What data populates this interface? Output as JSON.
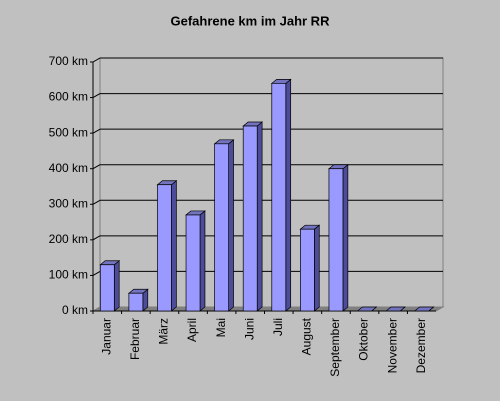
{
  "chart_data": {
    "type": "bar",
    "title": "Gefahrene km im Jahr RR",
    "categories": [
      "Januar",
      "Februar",
      "März",
      "April",
      "Mai",
      "Juni",
      "Juli",
      "August",
      "September",
      "Oktober",
      "November",
      "Dezember"
    ],
    "values": [
      130,
      50,
      355,
      270,
      470,
      520,
      640,
      230,
      400,
      0,
      0,
      0
    ],
    "color": "#9999ff",
    "ylim": [
      0,
      700
    ],
    "yticks": [
      {
        "value": 0,
        "label": "0 km"
      },
      {
        "value": 100,
        "label": "100 km"
      },
      {
        "value": 200,
        "label": "200 km"
      },
      {
        "value": 300,
        "label": "300 km"
      },
      {
        "value": 400,
        "label": "400 km"
      },
      {
        "value": 500,
        "label": "500 km"
      },
      {
        "value": 600,
        "label": "600 km"
      },
      {
        "value": 700,
        "label": "700 km"
      }
    ],
    "grid": true
  }
}
